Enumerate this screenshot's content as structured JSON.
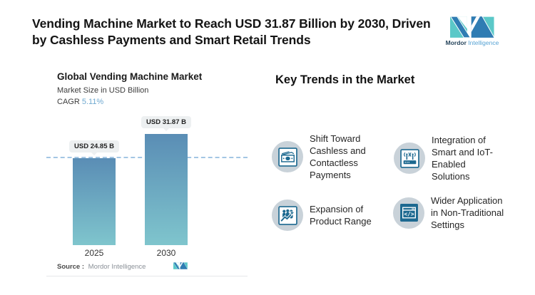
{
  "header": {
    "title": "Vending Machine Market to Reach USD 31.87 Billion by 2030, Driven by Cashless Payments and Smart Retail Trends"
  },
  "brand": {
    "name_primary": "Mordor",
    "name_secondary": "Intelligence"
  },
  "chart": {
    "title": "Global Vending Machine Market",
    "subtitle": "Market Size in USD Billion",
    "cagr_label": "CAGR",
    "cagr_value": "5.11%",
    "source_label": "Source :",
    "source_value": "Mordor Intelligence"
  },
  "chart_data": {
    "type": "bar",
    "title": "Global Vending Machine Market",
    "subtitle": "Market Size in USD Billion",
    "unit": "USD Billion",
    "cagr_percent": 5.11,
    "categories": [
      "2025",
      "2030"
    ],
    "values": [
      24.85,
      31.87
    ],
    "bar_labels": [
      "USD 24.85 B",
      "USD 31.87 B"
    ],
    "ylim": [
      0,
      37
    ],
    "grid": false,
    "legend": "none",
    "reference_line": {
      "style": "dashed",
      "at_value": 24.85
    },
    "bar_gradient_top": "#5A8DB5",
    "bar_gradient_bottom": "#7FC5CD"
  },
  "trends": {
    "heading": "Key Trends in the Market",
    "items": [
      {
        "icon": "banknote-icon",
        "label": "Shift Toward Cashless and Contactless Payments"
      },
      {
        "icon": "iot-router-icon",
        "label": "Integration of Smart and IoT-Enabled Solutions"
      },
      {
        "icon": "growth-people-icon",
        "label": "Expansion of Product Range"
      },
      {
        "icon": "code-window-icon",
        "label": "Wider Application in Non-Traditional Settings"
      }
    ]
  },
  "colors": {
    "accent_teal": "#5BC8C8",
    "accent_blue": "#2F7CB3",
    "icon_blue": "#1D6990",
    "cagr_value_blue": "#6FA9D0",
    "dashed_line_blue": "#A3C6E4",
    "icon_circle_bg": "#C9D2D9",
    "label_chip_bg": "#EDF0F1"
  }
}
